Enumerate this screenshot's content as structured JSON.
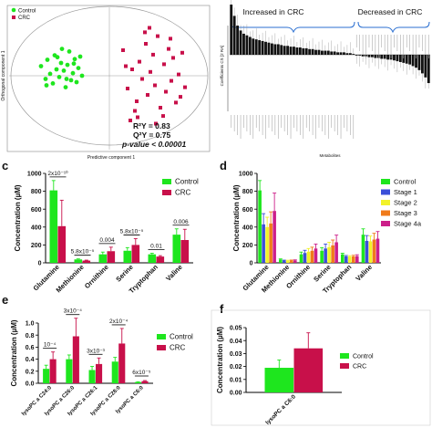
{
  "colors": {
    "control": "#1ee61e",
    "crc": "#c8104a",
    "stage1": "#3b4fd8",
    "stage2": "#f2f22a",
    "stage3": "#f07a1a",
    "stage4a": "#cc1f8a",
    "bar_dark": "#111111"
  },
  "panels": {
    "c": "c",
    "d": "d",
    "e": "e",
    "f": "f"
  },
  "chart_data": [
    {
      "id": "pls-da-scores",
      "type": "scatter",
      "xlabel": "Predictive component 1",
      "ylabel": "Orthogonal component 1",
      "legend": [
        "Control",
        "CRC"
      ],
      "legend_position": "top-left",
      "stats": [
        "R²Y = 0.83",
        "Q²Y = 0.75",
        "p-value < 0.00001"
      ],
      "xlim": [
        -10,
        10
      ],
      "ylim": [
        -10,
        10
      ],
      "series": [
        {
          "name": "Control",
          "points": [
            [
              -7.5,
              1.5
            ],
            [
              -7.0,
              -0.5
            ],
            [
              -6.8,
              2.5
            ],
            [
              -6.5,
              0.3
            ],
            [
              -6.2,
              -1.2
            ],
            [
              -6.0,
              3.2
            ],
            [
              -5.8,
              1.0
            ],
            [
              -5.5,
              -0.2
            ],
            [
              -5.3,
              2.0
            ],
            [
              -5.0,
              0.8
            ],
            [
              -4.8,
              -1.8
            ],
            [
              -4.6,
              1.7
            ],
            [
              -4.4,
              3.8
            ],
            [
              -4.2,
              -0.7
            ],
            [
              -4.0,
              0.4
            ],
            [
              -3.8,
              2.6
            ],
            [
              -3.6,
              -1.0
            ],
            [
              -3.4,
              1.2
            ],
            [
              -3.2,
              3.0
            ],
            [
              -3.0,
              0.0
            ],
            [
              -6.9,
              -1.5
            ],
            [
              -5.2,
              4.2
            ],
            [
              -4.7,
              -0.5
            ],
            [
              -3.9,
              1.9
            ],
            [
              -5.7,
              2.9
            ]
          ]
        },
        {
          "name": "CRC",
          "points": [
            [
              1.5,
              4.0
            ],
            [
              2.0,
              -2.0
            ],
            [
              2.5,
              1.0
            ],
            [
              3.0,
              -4.0
            ],
            [
              3.3,
              2.2
            ],
            [
              3.6,
              -0.5
            ],
            [
              4.0,
              5.0
            ],
            [
              4.2,
              -3.0
            ],
            [
              4.5,
              0.6
            ],
            [
              4.8,
              3.3
            ],
            [
              5.0,
              -1.5
            ],
            [
              5.3,
              6.2
            ],
            [
              5.6,
              -5.0
            ],
            [
              6.0,
              1.8
            ],
            [
              6.2,
              -2.5
            ],
            [
              6.5,
              4.2
            ],
            [
              6.8,
              -0.8
            ],
            [
              7.0,
              2.8
            ],
            [
              7.3,
              -4.2
            ],
            [
              7.6,
              0.2
            ],
            [
              8.0,
              3.6
            ],
            [
              8.3,
              -1.8
            ],
            [
              2.8,
              -5.5
            ],
            [
              3.9,
              6.8
            ],
            [
              5.9,
              -6.3
            ],
            [
              4.4,
              7.5
            ],
            [
              1.8,
              1.5
            ],
            [
              6.7,
              5.8
            ],
            [
              2.3,
              -7.0
            ],
            [
              5.1,
              -7.5
            ],
            [
              7.8,
              -3.3
            ],
            [
              3.1,
              -6.5
            ]
          ]
        }
      ]
    },
    {
      "id": "coefficient-bars",
      "type": "bar",
      "xlabel": "Metabolites",
      "ylabel": "Coefficients CS [2 RA]",
      "sections": [
        "Increased in CRC",
        "Decreased in CRC"
      ],
      "values": [
        0.62,
        0.48,
        0.36,
        0.3,
        0.26,
        0.24,
        0.22,
        0.2,
        0.19,
        0.18,
        0.17,
        0.16,
        0.15,
        0.14,
        0.13,
        0.13,
        0.12,
        0.11,
        0.11,
        0.1,
        0.1,
        0.09,
        0.09,
        0.08,
        0.08,
        0.07,
        0.07,
        0.06,
        0.06,
        0.05,
        0.05,
        0.05,
        0.04,
        0.04,
        0.03,
        0.03,
        0.03,
        0.02,
        0.02,
        0.01,
        -0.01,
        -0.01,
        -0.02,
        -0.02,
        -0.03,
        -0.03,
        -0.04,
        -0.04,
        -0.05,
        -0.05,
        -0.06,
        -0.06,
        -0.07,
        -0.08,
        -0.09,
        -0.1,
        -0.11,
        -0.12,
        -0.14,
        -0.16,
        -0.19,
        -0.23,
        -0.28,
        -0.35
      ]
    },
    {
      "id": "amino-acids-groups",
      "panel": "c",
      "type": "bar",
      "ylabel": "Concentration (µM)",
      "ylim": [
        0,
        1000
      ],
      "yticks": [
        0,
        200,
        400,
        600,
        800,
        1000
      ],
      "categories": [
        "Glutamine",
        "Methionine",
        "Ornithine",
        "Serine",
        "Tryptophan",
        "Valine"
      ],
      "legend_position": "top-right",
      "series": [
        {
          "name": "Control",
          "values": [
            810,
            38,
            95,
            135,
            95,
            315
          ],
          "errors": [
            110,
            6,
            25,
            35,
            12,
            65
          ]
        },
        {
          "name": "CRC",
          "values": [
            410,
            25,
            130,
            200,
            70,
            255
          ],
          "errors": [
            290,
            5,
            45,
            70,
            10,
            120
          ]
        }
      ],
      "pvalues": [
        "2x10⁻¹⁰",
        "5.8x10⁻⁵",
        "0.004",
        "5.8x10⁻⁵",
        "0.01",
        "0.006"
      ]
    },
    {
      "id": "amino-acids-stages",
      "panel": "d",
      "type": "bar",
      "ylabel": "Concentration (µM)",
      "ylim": [
        0,
        1000
      ],
      "yticks": [
        0,
        200,
        400,
        600,
        800,
        1000
      ],
      "categories": [
        "Glutamine",
        "Methionine",
        "Ornithine",
        "Serine",
        "Tryptophan",
        "Valine"
      ],
      "legend_position": "top-right",
      "series": [
        {
          "name": "Control",
          "values": [
            810,
            38,
            95,
            135,
            95,
            315
          ],
          "errors": [
            110,
            6,
            25,
            35,
            12,
            65
          ]
        },
        {
          "name": "Stage 1",
          "values": [
            430,
            25,
            110,
            160,
            72,
            245
          ],
          "errors": [
            120,
            5,
            30,
            50,
            10,
            60
          ]
        },
        {
          "name": "Stage 2",
          "values": [
            400,
            24,
            125,
            175,
            70,
            240
          ],
          "errors": [
            110,
            5,
            35,
            55,
            10,
            60
          ]
        },
        {
          "name": "Stage 3",
          "values": [
            440,
            26,
            135,
            195,
            72,
            260
          ],
          "errors": [
            130,
            5,
            40,
            60,
            12,
            70
          ]
        },
        {
          "name": "Stage 4a",
          "values": [
            580,
            27,
            160,
            230,
            75,
            270
          ],
          "errors": [
            200,
            6,
            50,
            80,
            15,
            80
          ]
        }
      ]
    },
    {
      "id": "lysopc-groups",
      "panel": "e",
      "type": "bar",
      "ylabel": "Concentration (µM)",
      "ylim": [
        0,
        1.0
      ],
      "yticks": [
        0.0,
        0.2,
        0.4,
        0.6,
        0.8,
        1.0
      ],
      "categories": [
        "lysoPC a C24:0",
        "lysoPC a C26:0",
        "lysoPC a C26:1",
        "lysoPC a C28:0",
        "lysoPC a C6:0"
      ],
      "legend_position": "top-right",
      "series": [
        {
          "name": "Control",
          "values": [
            0.24,
            0.4,
            0.22,
            0.36,
            0.02
          ],
          "errors": [
            0.06,
            0.07,
            0.06,
            0.07,
            0.005
          ]
        },
        {
          "name": "CRC",
          "values": [
            0.4,
            0.78,
            0.32,
            0.66,
            0.035
          ],
          "errors": [
            0.12,
            0.3,
            0.1,
            0.25,
            0.01
          ]
        }
      ],
      "pvalues": [
        "10⁻⁴",
        "3x10⁻⁴",
        "3x10⁻³",
        "2x10⁻⁴",
        "6x10⁻⁵"
      ]
    },
    {
      "id": "lysopc-c6",
      "panel": "f",
      "type": "bar",
      "ylabel": "Concentration (µM)",
      "ylim": [
        0,
        0.05
      ],
      "yticks": [
        0.0,
        0.01,
        0.02,
        0.03,
        0.04,
        0.05
      ],
      "categories": [
        "lysoPC a C6:0"
      ],
      "legend_position": "top-right",
      "series": [
        {
          "name": "Control",
          "values": [
            0.019
          ],
          "errors": [
            0.006
          ]
        },
        {
          "name": "CRC",
          "values": [
            0.034
          ],
          "errors": [
            0.012
          ]
        }
      ]
    }
  ]
}
